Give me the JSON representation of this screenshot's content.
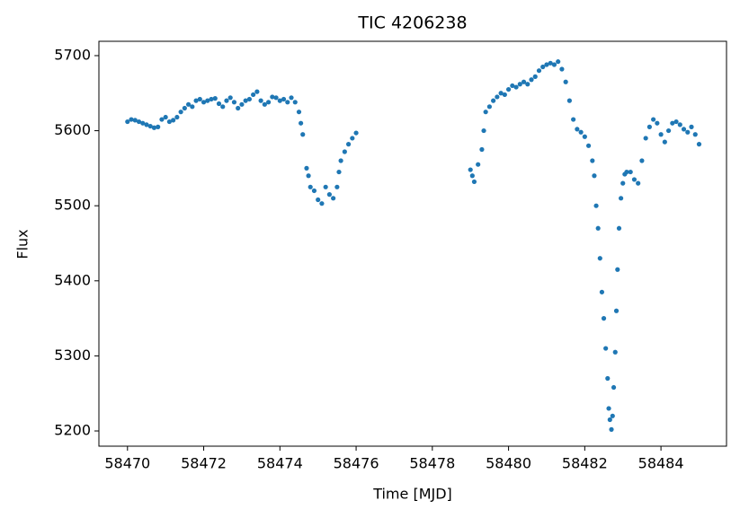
{
  "chart_data": {
    "type": "scatter",
    "title": "TIC 4206238",
    "x_label": "Time [MJD]",
    "y_label": "Flux",
    "color": "#1f77b4",
    "grid": false,
    "xlim": [
      58469.25,
      58485.72
    ],
    "ylim": [
      5179.7,
      5719.1
    ],
    "xticks": [
      58470,
      58472,
      58474,
      58476,
      58478,
      58480,
      58482,
      58484
    ],
    "yticks": [
      5200,
      5300,
      5400,
      5500,
      5600,
      5700
    ],
    "x": [
      58470.0,
      58470.1,
      58470.2,
      58470.3,
      58470.4,
      58470.5,
      58470.6,
      58470.7,
      58470.8,
      58470.9,
      58471.0,
      58471.1,
      58471.2,
      58471.3,
      58471.4,
      58471.5,
      58471.6,
      58471.7,
      58471.8,
      58471.9,
      58472.0,
      58472.1,
      58472.2,
      58472.3,
      58472.4,
      58472.5,
      58472.6,
      58472.7,
      58472.8,
      58472.9,
      58473.0,
      58473.1,
      58473.2,
      58473.3,
      58473.4,
      58473.5,
      58473.6,
      58473.7,
      58473.8,
      58473.9,
      58474.0,
      58474.1,
      58474.2,
      58474.3,
      58474.4,
      58474.5,
      58474.55,
      58474.6,
      58474.7,
      58474.75,
      58474.8,
      58474.9,
      58475.0,
      58475.1,
      58475.2,
      58475.3,
      58475.4,
      58475.5,
      58475.55,
      58475.6,
      58475.7,
      58475.8,
      58475.9,
      58476.0,
      58479.0,
      58479.05,
      58479.1,
      58479.2,
      58479.3,
      58479.35,
      58479.4,
      58479.5,
      58479.6,
      58479.7,
      58479.8,
      58479.9,
      58480.0,
      58480.1,
      58480.2,
      58480.3,
      58480.4,
      58480.5,
      58480.6,
      58480.7,
      58480.8,
      58480.9,
      58481.0,
      58481.1,
      58481.2,
      58481.3,
      58481.4,
      58481.5,
      58481.6,
      58481.7,
      58481.8,
      58481.9,
      58482.0,
      58482.1,
      58482.2,
      58482.25,
      58482.3,
      58482.35,
      58482.4,
      58482.45,
      58482.5,
      58482.55,
      58482.6,
      58482.63,
      58482.66,
      58482.7,
      58482.73,
      58482.76,
      58482.8,
      58482.83,
      58482.86,
      58482.9,
      58482.95,
      58483.0,
      58483.05,
      58483.1,
      58483.2,
      58483.3,
      58483.4,
      58483.5,
      58483.6,
      58483.7,
      58483.8,
      58483.9,
      58484.0,
      58484.1,
      58484.2,
      58484.3,
      58484.4,
      58484.5,
      58484.6,
      58484.7,
      58484.8,
      58484.9,
      58485.0
    ],
    "values": [
      5612,
      5615,
      5614,
      5612,
      5610,
      5608,
      5606,
      5604,
      5605,
      5615,
      5618,
      5612,
      5614,
      5618,
      5625,
      5630,
      5635,
      5632,
      5640,
      5642,
      5638,
      5640,
      5642,
      5643,
      5636,
      5632,
      5640,
      5644,
      5638,
      5630,
      5635,
      5640,
      5642,
      5648,
      5652,
      5640,
      5635,
      5638,
      5645,
      5644,
      5640,
      5642,
      5638,
      5644,
      5638,
      5625,
      5610,
      5595,
      5550,
      5540,
      5525,
      5520,
      5508,
      5503,
      5525,
      5515,
      5510,
      5525,
      5545,
      5560,
      5572,
      5582,
      5590,
      5597,
      5548,
      5540,
      5532,
      5555,
      5575,
      5600,
      5625,
      5632,
      5640,
      5645,
      5650,
      5648,
      5655,
      5660,
      5658,
      5662,
      5665,
      5662,
      5668,
      5672,
      5680,
      5685,
      5688,
      5690,
      5688,
      5692,
      5682,
      5665,
      5640,
      5615,
      5602,
      5598,
      5592,
      5580,
      5560,
      5540,
      5500,
      5470,
      5430,
      5385,
      5350,
      5310,
      5270,
      5230,
      5215,
      5202,
      5220,
      5258,
      5305,
      5360,
      5415,
      5470,
      5510,
      5530,
      5542,
      5545,
      5545,
      5535,
      5530,
      5560,
      5590,
      5605,
      5615,
      5610,
      5595,
      5585,
      5600,
      5610,
      5612,
      5608,
      5602,
      5598,
      5605,
      5595,
      5582
    ]
  }
}
